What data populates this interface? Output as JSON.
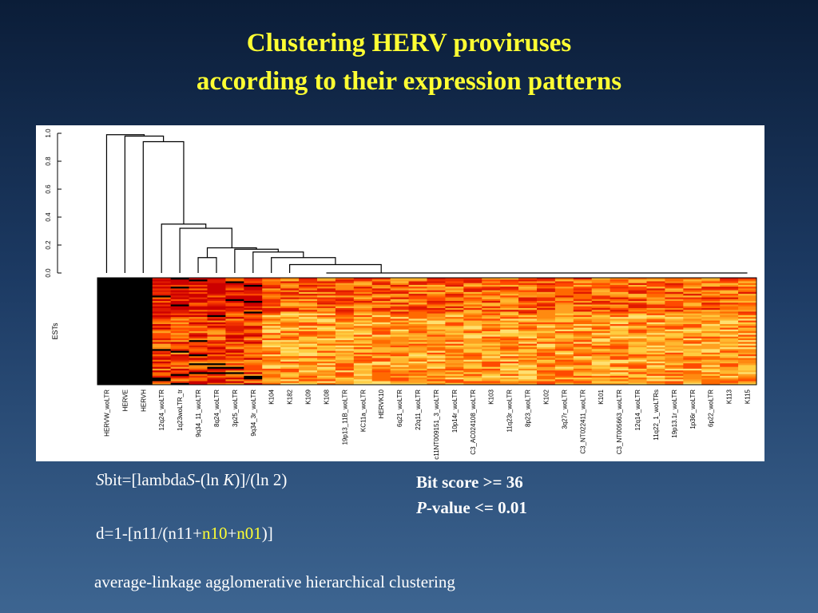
{
  "title": {
    "line1": "Clustering HERV proviruses",
    "line2": "according to their expression patterns"
  },
  "chart_data": {
    "type": "heatmap",
    "dendrogram_axis_ticks": [
      "0.0",
      "0.2",
      "0.4",
      "0.6",
      "0.8",
      "1.0"
    ],
    "y_axis_label": "ESTs",
    "columns": [
      "HERVW_woLTR",
      "HERVE",
      "HERVH",
      "12q24_woLTR",
      "1q23woLTR_tr",
      "9q34_11_woLTR",
      "8q24_woLTR",
      "3p25_woLTR",
      "9q34_3r_woLTR",
      "K104",
      "K182",
      "K109",
      "K108",
      "19p13_11B_woLTR",
      "KC11a_woLTR",
      "HERVK10",
      "6q21_woLTR",
      "22q11_woLTR",
      "c11NT009151_3_woLTR",
      "10p14r_woLTR",
      "C3_AC024108_woLTR",
      "K103",
      "11q23r_woLTR",
      "8p23_woLTR",
      "K102",
      "3q27r_woLTR",
      "C3_NT022411_woLTR",
      "K101",
      "C3_NT005663_woLTR",
      "12q14_woLTR",
      "11q22_1_woLTRs",
      "19p13.1r_woLTR",
      "1p36r_woLTR",
      "6p22_woLTR",
      "K113",
      "K115"
    ],
    "dendrogram_merge_heights": [
      0.99,
      0.98,
      0.94,
      0.35,
      0.32,
      0.18,
      0.17,
      0.15,
      0.11,
      0.06,
      0.0
    ]
  },
  "formulas": {
    "s_italic": "S",
    "s_rest1": "bit=[lambda",
    "s_italic2": "S",
    "s_rest2": "-(ln ",
    "k_italic": "K",
    "s_rest3": ")]/(ln 2)",
    "d_part1": "d=1-[n11/(n11+",
    "d_n10": "n10",
    "d_plus": "+",
    "d_n01": "n01",
    "d_part2": ")]"
  },
  "thresholds": {
    "bit_score": "Bit score >= 36",
    "p_italic": "P",
    "p_rest": "-value <= 0.01"
  },
  "method": "average-linkage agglomerative hierarchical clustering",
  "colors": {
    "title": "#ffff33",
    "text": "#ffffff",
    "heat_low": "#000000",
    "heat_mid": "#ff3300",
    "heat_high": "#ffff66"
  }
}
